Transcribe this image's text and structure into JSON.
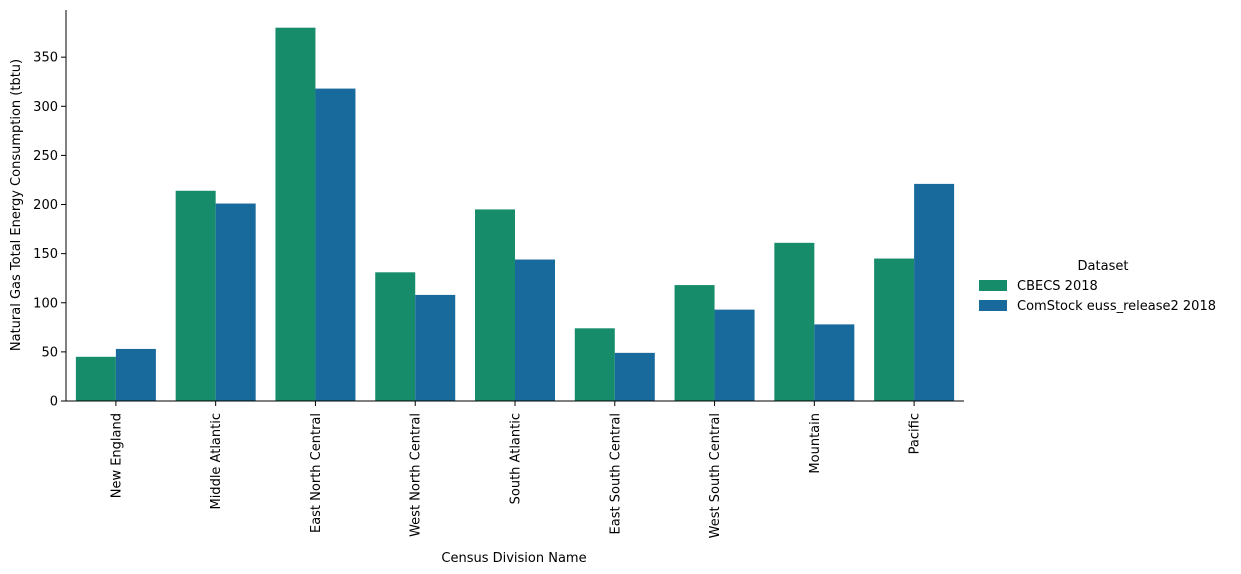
{
  "chart_data": {
    "type": "bar",
    "title": "",
    "xlabel": "Census Division Name",
    "ylabel": "Natural Gas Total Energy Consumption (tbtu)",
    "ylim": [
      0,
      398
    ],
    "yticks": [
      0,
      50,
      100,
      150,
      200,
      250,
      300,
      350
    ],
    "grid": false,
    "legend_position": "right",
    "legend_title": "Dataset",
    "categories": [
      "New England",
      "Middle Atlantic",
      "East North Central",
      "West North Central",
      "South Atlantic",
      "East South Central",
      "West South Central",
      "Mountain",
      "Pacific"
    ],
    "series": [
      {
        "name": "CBECS 2018",
        "color": "#168c6b",
        "values": [
          45,
          214,
          380,
          131,
          195,
          74,
          118,
          161,
          145
        ]
      },
      {
        "name": "ComStock euss_release2 2018",
        "color": "#186a9d",
        "values": [
          53,
          201,
          318,
          108,
          144,
          49,
          93,
          78,
          221
        ]
      }
    ]
  }
}
